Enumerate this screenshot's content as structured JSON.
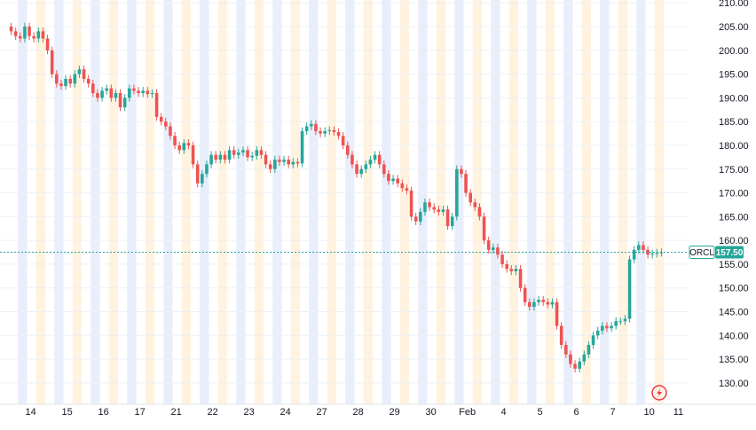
{
  "symbol": "ORCL",
  "last_price_label": "157.50",
  "colors": {
    "up": "#26a69a",
    "down": "#ef5350",
    "price_line": "#26a69a",
    "band_orange": "#fff3e0",
    "band_blue": "#e8eefc",
    "grid": "#eef0f3",
    "badge": "#f23645"
  },
  "badge_icon": "lightning-icon",
  "chart_data": {
    "type": "candlestick",
    "title": "",
    "xlabel": "",
    "ylabel": "",
    "ylim": [
      125.5,
      210.6
    ],
    "y_ticks": [
      "130.00",
      "135.00",
      "140.00",
      "145.00",
      "150.00",
      "155.00",
      "160.00",
      "165.00",
      "170.00",
      "175.00",
      "180.00",
      "185.00",
      "190.00",
      "195.00",
      "200.00",
      "205.00",
      "210.00"
    ],
    "x_tick_labels": [
      "14",
      "15",
      "16",
      "17",
      "21",
      "22",
      "23",
      "24",
      "27",
      "28",
      "29",
      "30",
      "Feb",
      "4",
      "5",
      "6",
      "7",
      "10",
      "11"
    ],
    "last_price": 157.5,
    "grid": true,
    "sessions": [
      {
        "label": "14",
        "closes": [
          204,
          203,
          202.5,
          205,
          203,
          202.5,
          204,
          202.5
        ]
      },
      {
        "label": "15",
        "closes": [
          200,
          195,
          193,
          192.5,
          194,
          193,
          195,
          196
        ]
      },
      {
        "label": "16",
        "closes": [
          194,
          193,
          191,
          190,
          191.5,
          192,
          190,
          191
        ]
      },
      {
        "label": "17",
        "closes": [
          188,
          190,
          192,
          191.5,
          191,
          191.5,
          190.8,
          191
        ]
      },
      {
        "label": "21",
        "closes": [
          186,
          185,
          184,
          182,
          180,
          179,
          180.5,
          180
        ]
      },
      {
        "label": "22",
        "closes": [
          176,
          172,
          174,
          176,
          178,
          177,
          178,
          177
        ]
      },
      {
        "label": "23",
        "closes": [
          179,
          178,
          178.5,
          179,
          177.5,
          177.8,
          179,
          178
        ]
      },
      {
        "label": "24",
        "closes": [
          176,
          175,
          177,
          176.5,
          177,
          176,
          176.5,
          176.2
        ]
      },
      {
        "label": "27",
        "closes": [
          183,
          184,
          184.5,
          183,
          182.5,
          183,
          183.2,
          182.8
        ]
      },
      {
        "label": "28",
        "closes": [
          182,
          180,
          178,
          176,
          174,
          175,
          176,
          177
        ]
      },
      {
        "label": "29",
        "closes": [
          178,
          176,
          174,
          172.5,
          173,
          172,
          171,
          170.5
        ]
      },
      {
        "label": "30",
        "closes": [
          165,
          164,
          166,
          168,
          167,
          166.5,
          166,
          166.5
        ]
      },
      {
        "label": "Feb",
        "closes": [
          163,
          165,
          175,
          174,
          170,
          168,
          167,
          165
        ]
      },
      {
        "label": "4",
        "closes": [
          160,
          158,
          158.5,
          157,
          155,
          154,
          153.5,
          154
        ]
      },
      {
        "label": "5",
        "closes": [
          150,
          147,
          146,
          147,
          147.5,
          147,
          146.5,
          147
        ]
      },
      {
        "label": "6",
        "closes": [
          142,
          138,
          136,
          134,
          133,
          134.5,
          136,
          138
        ]
      },
      {
        "label": "7",
        "closes": [
          140,
          141,
          142,
          141.5,
          142,
          143,
          143,
          143.5
        ]
      },
      {
        "label": "10",
        "closes": [
          156,
          158,
          159,
          158,
          157,
          157.2,
          157.4,
          157.5
        ]
      }
    ]
  }
}
